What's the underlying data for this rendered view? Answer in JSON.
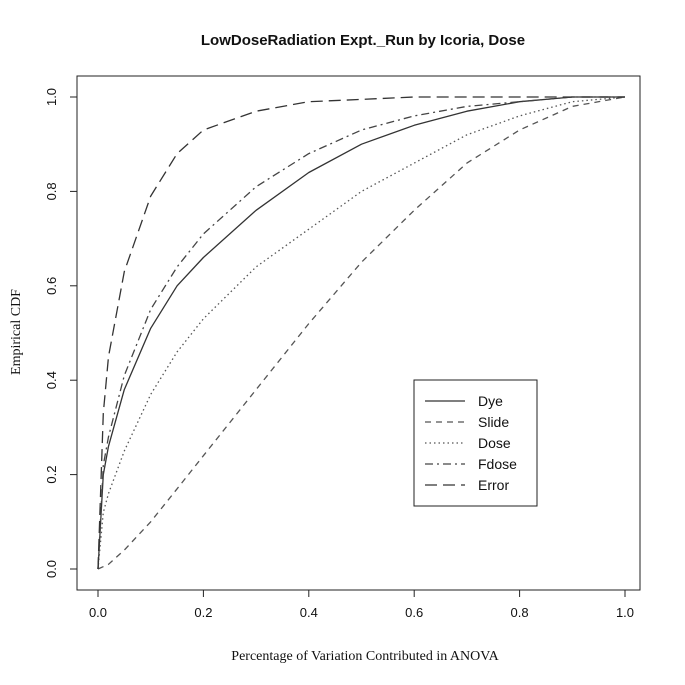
{
  "chart_data": {
    "type": "line",
    "title": "LowDoseRadiation Expt._Run by Icoria, Dose",
    "xlabel": "Percentage of Variation Contributed in ANOVA",
    "ylabel": "Empirical CDF",
    "xlim": [
      0.0,
      1.0
    ],
    "ylim": [
      0.0,
      1.0
    ],
    "x_ticks": [
      "0.0",
      "0.2",
      "0.4",
      "0.6",
      "0.8",
      "1.0"
    ],
    "y_ticks": [
      "0.0",
      "0.2",
      "0.4",
      "0.6",
      "0.8",
      "1.0"
    ],
    "grid": false,
    "legend_position": "lower-right",
    "series": [
      {
        "name": "Dye",
        "linestyle": "solid",
        "color": "#333333",
        "x": [
          0,
          0.01,
          0.02,
          0.05,
          0.1,
          0.15,
          0.2,
          0.3,
          0.4,
          0.5,
          0.6,
          0.7,
          0.8,
          0.9,
          1.0
        ],
        "y": [
          0,
          0.2,
          0.26,
          0.38,
          0.51,
          0.6,
          0.66,
          0.76,
          0.84,
          0.9,
          0.94,
          0.97,
          0.99,
          1.0,
          1.0
        ]
      },
      {
        "name": "Slide",
        "linestyle": "dashed",
        "color": "#555555",
        "x": [
          0,
          0.02,
          0.05,
          0.1,
          0.15,
          0.2,
          0.3,
          0.4,
          0.5,
          0.6,
          0.7,
          0.8,
          0.9,
          1.0
        ],
        "y": [
          0,
          0.01,
          0.04,
          0.1,
          0.17,
          0.24,
          0.38,
          0.52,
          0.65,
          0.76,
          0.86,
          0.93,
          0.98,
          1.0
        ]
      },
      {
        "name": "Dose",
        "linestyle": "dotted",
        "color": "#555555",
        "x": [
          0,
          0.01,
          0.02,
          0.05,
          0.1,
          0.15,
          0.2,
          0.3,
          0.4,
          0.5,
          0.6,
          0.7,
          0.8,
          0.9,
          1.0
        ],
        "y": [
          0,
          0.12,
          0.16,
          0.25,
          0.37,
          0.46,
          0.53,
          0.64,
          0.72,
          0.8,
          0.86,
          0.92,
          0.96,
          0.99,
          1.0
        ]
      },
      {
        "name": "Fdose",
        "linestyle": "dashdot",
        "color": "#444444",
        "x": [
          0,
          0.01,
          0.02,
          0.05,
          0.1,
          0.15,
          0.2,
          0.3,
          0.4,
          0.5,
          0.6,
          0.7,
          0.8,
          0.9,
          1.0
        ],
        "y": [
          0,
          0.22,
          0.28,
          0.41,
          0.55,
          0.64,
          0.71,
          0.81,
          0.88,
          0.93,
          0.96,
          0.98,
          0.99,
          1.0,
          1.0
        ]
      },
      {
        "name": "Error",
        "linestyle": "longdash",
        "color": "#333333",
        "x": [
          0,
          0.01,
          0.02,
          0.05,
          0.1,
          0.15,
          0.2,
          0.3,
          0.4,
          0.5,
          0.6,
          0.7,
          0.8,
          1.0
        ],
        "y": [
          0,
          0.33,
          0.45,
          0.63,
          0.79,
          0.88,
          0.93,
          0.97,
          0.99,
          0.995,
          1.0,
          1.0,
          1.0,
          1.0
        ]
      }
    ]
  }
}
